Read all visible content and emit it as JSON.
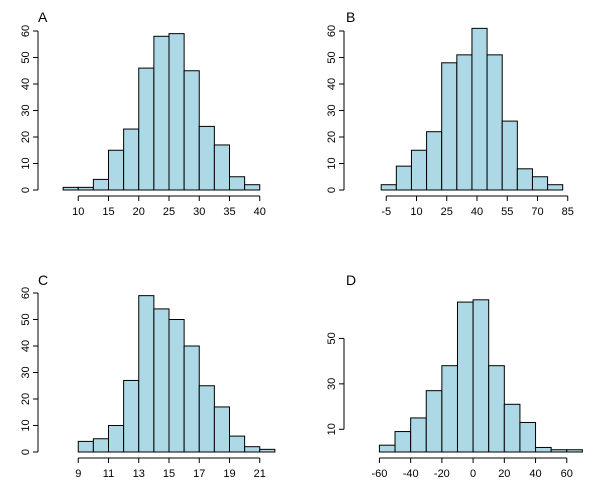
{
  "chart_data": [
    {
      "type": "bar",
      "title": "A",
      "xlabel": "",
      "ylabel": "",
      "bin_width": 2.5,
      "bins_start": [
        7.5,
        10,
        12.5,
        15,
        17.5,
        20,
        22.5,
        25,
        27.5,
        30,
        32.5,
        35,
        37.5
      ],
      "values": [
        1,
        1,
        4,
        15,
        23,
        46,
        58,
        59,
        45,
        24,
        17,
        5,
        2
      ],
      "xlim": [
        5,
        45
      ],
      "ylim": [
        0,
        60
      ],
      "xticks": [
        10,
        15,
        20,
        25,
        30,
        35,
        40
      ],
      "yticks": [
        0,
        10,
        20,
        30,
        40,
        50,
        60
      ],
      "bar_color": "#add8e6"
    },
    {
      "type": "bar",
      "title": "B",
      "xlabel": "",
      "ylabel": "",
      "bin_width": 7.5,
      "bins_start": [
        -7.5,
        0,
        7.5,
        15,
        22.5,
        30,
        37.5,
        45,
        52.5,
        60,
        67.5,
        75
      ],
      "values": [
        2,
        9,
        15,
        22,
        48,
        51,
        61,
        51,
        26,
        8,
        5,
        2
      ],
      "xlim": [
        -20,
        100
      ],
      "ylim": [
        0,
        60
      ],
      "xticks": [
        -5,
        10,
        25,
        40,
        55,
        70,
        85
      ],
      "yticks": [
        0,
        10,
        20,
        30,
        40,
        50,
        60
      ],
      "bar_color": "#add8e6"
    },
    {
      "type": "bar",
      "title": "C",
      "xlabel": "",
      "ylabel": "",
      "bin_width": 1,
      "bins_start": [
        9,
        10,
        11,
        12,
        13,
        14,
        15,
        16,
        17,
        18,
        19,
        20,
        21
      ],
      "values": [
        4,
        5,
        10,
        27,
        59,
        54,
        50,
        40,
        25,
        17,
        6,
        2,
        1
      ],
      "xlim": [
        7,
        23
      ],
      "ylim": [
        0,
        60
      ],
      "xticks": [
        9,
        11,
        13,
        15,
        17,
        19,
        21
      ],
      "yticks": [
        0,
        10,
        20,
        30,
        40,
        50,
        60
      ],
      "bar_color": "#add8e6"
    },
    {
      "type": "bar",
      "title": "D",
      "xlabel": "",
      "ylabel": "",
      "bin_width": 10,
      "bins_start": [
        -60,
        -50,
        -40,
        -30,
        -20,
        -10,
        0,
        10,
        20,
        30,
        40,
        50,
        60
      ],
      "values": [
        3,
        9,
        15,
        27,
        38,
        66,
        67,
        38,
        21,
        13,
        2,
        1,
        1
      ],
      "xlim": [
        -75,
        80
      ],
      "ylim": [
        0,
        70
      ],
      "xticks": [
        -60,
        -40,
        -20,
        0,
        20,
        40,
        60
      ],
      "yticks": [
        10,
        30,
        50
      ],
      "bar_color": "#add8e6"
    }
  ]
}
